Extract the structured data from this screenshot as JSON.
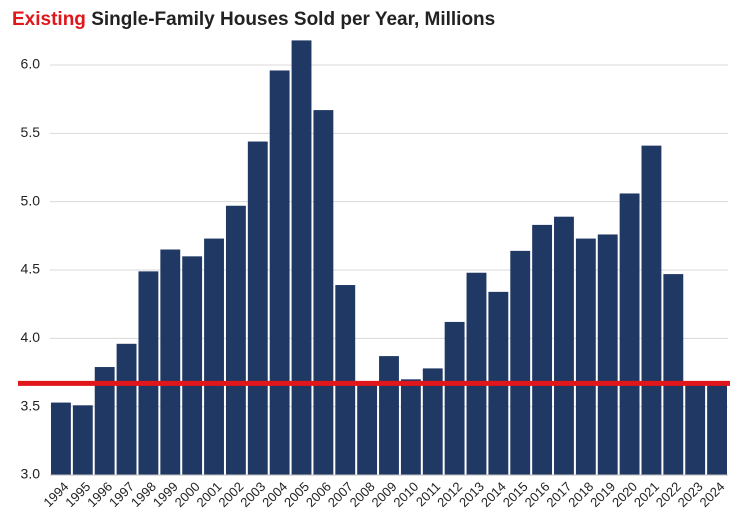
{
  "chart_data": {
    "type": "bar",
    "title_highlight": "Existing",
    "title_highlight_color": "#e0161b",
    "title": "Single-Family Houses Sold per Year, Millions",
    "categories": [
      "1994",
      "1995",
      "1996",
      "1997",
      "1998",
      "1999",
      "2000",
      "2001",
      "2002",
      "2003",
      "2004",
      "2005",
      "2006",
      "2007",
      "2008",
      "2009",
      "2010",
      "2011",
      "2012",
      "2013",
      "2014",
      "2015",
      "2016",
      "2017",
      "2018",
      "2019",
      "2020",
      "2021",
      "2022",
      "2023",
      "2024"
    ],
    "values": [
      3.53,
      3.51,
      3.79,
      3.96,
      4.49,
      4.65,
      4.6,
      4.73,
      4.97,
      5.44,
      5.96,
      6.18,
      5.67,
      4.39,
      3.66,
      3.87,
      3.7,
      3.78,
      4.12,
      4.48,
      4.34,
      4.64,
      4.83,
      4.89,
      4.73,
      4.76,
      5.06,
      5.41,
      4.47,
      3.66,
      3.66
    ],
    "color": "#1f3864",
    "reference_line": 3.67,
    "reference_color": "#e0161b",
    "ylim": [
      3,
      6.3
    ],
    "yticks": [
      {
        "value": 3,
        "label": "3.0"
      },
      3.5,
      {
        "value": 4,
        "label": "4.0"
      },
      4.5,
      {
        "value": 5,
        "label": "5.0"
      },
      5.5,
      {
        "value": 6,
        "label": "6.0"
      }
    ],
    "grid": true
  }
}
